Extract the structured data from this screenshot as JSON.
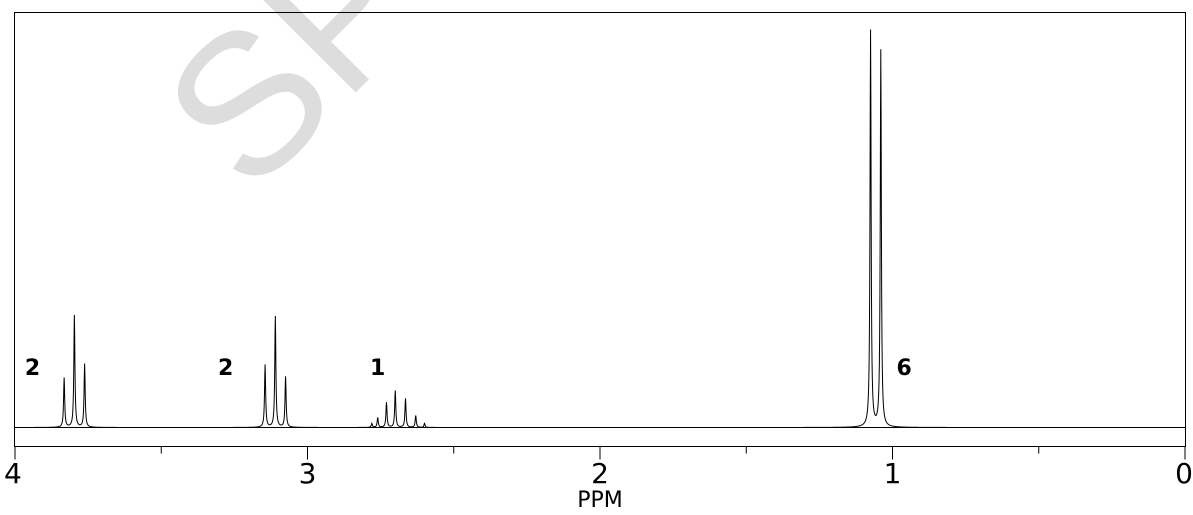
{
  "watermark": {
    "text": "SP"
  },
  "chart_data": {
    "type": "line",
    "title": "",
    "xlabel": "PPM",
    "ylabel": "",
    "xlim": [
      4,
      0
    ],
    "x_reversed": true,
    "ylim": [
      0,
      1.0
    ],
    "grid": false,
    "x_ticks": [
      {
        "value": 4,
        "label": "4"
      },
      {
        "value": 3,
        "label": "3"
      },
      {
        "value": 2,
        "label": "2"
      },
      {
        "value": 1,
        "label": "1"
      },
      {
        "value": 0,
        "label": "0"
      }
    ],
    "x_minor_ticks": [
      3.5,
      2.5,
      1.5,
      0.5
    ],
    "peaks": [
      {
        "ppm": 3.832,
        "height": 0.125
      },
      {
        "ppm": 3.797,
        "height": 0.283
      },
      {
        "ppm": 3.762,
        "height": 0.16
      },
      {
        "ppm": 3.145,
        "height": 0.158
      },
      {
        "ppm": 3.11,
        "height": 0.28
      },
      {
        "ppm": 3.075,
        "height": 0.128
      },
      {
        "ppm": 2.78,
        "height": 0.01
      },
      {
        "ppm": 2.76,
        "height": 0.025
      },
      {
        "ppm": 2.73,
        "height": 0.063
      },
      {
        "ppm": 2.7,
        "height": 0.093
      },
      {
        "ppm": 2.665,
        "height": 0.073
      },
      {
        "ppm": 2.63,
        "height": 0.03
      },
      {
        "ppm": 2.6,
        "height": 0.01
      },
      {
        "ppm": 1.075,
        "height": 1.0
      },
      {
        "ppm": 1.04,
        "height": 0.95
      }
    ],
    "annotations": [
      {
        "text": "2",
        "ppm": 3.94
      },
      {
        "text": "2",
        "ppm": 3.28
      },
      {
        "text": "1",
        "ppm": 2.76
      },
      {
        "text": "6",
        "ppm": 0.96
      }
    ]
  }
}
